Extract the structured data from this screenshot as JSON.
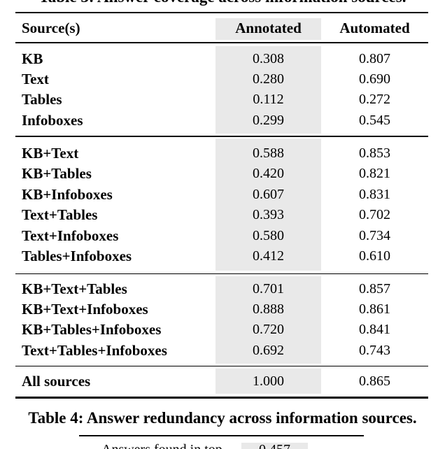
{
  "colors": {
    "background": "#ffffff",
    "text": "#000000",
    "rule": "#000000",
    "annotated_column_shade": "#e9e9e9"
  },
  "top_partial_caption": {
    "text": "Table 3: Answer coverage across information sources."
  },
  "table": {
    "header": {
      "source": "Source(s)",
      "annotated": "Annotated",
      "automated": "Automated"
    },
    "sections": [
      {
        "rows": [
          {
            "label": "KB",
            "annotated": "0.308",
            "automated": "0.807"
          },
          {
            "label": "Text",
            "annotated": "0.280",
            "automated": "0.690"
          },
          {
            "label": "Tables",
            "annotated": "0.112",
            "automated": "0.272"
          },
          {
            "label": "Infoboxes",
            "annotated": "0.299",
            "automated": "0.545"
          }
        ]
      },
      {
        "rows": [
          {
            "label": "KB+Text",
            "annotated": "0.588",
            "automated": "0.853"
          },
          {
            "label": "KB+Tables",
            "annotated": "0.420",
            "automated": "0.821"
          },
          {
            "label": "KB+Infoboxes",
            "annotated": "0.607",
            "automated": "0.831"
          },
          {
            "label": "Text+Tables",
            "annotated": "0.393",
            "automated": "0.702"
          },
          {
            "label": "Text+Infoboxes",
            "annotated": "0.580",
            "automated": "0.734"
          },
          {
            "label": "Tables+Infoboxes",
            "annotated": "0.412",
            "automated": "0.610"
          }
        ]
      },
      {
        "rows": [
          {
            "label": "KB+Text+Tables",
            "annotated": "0.701",
            "automated": "0.857"
          },
          {
            "label": "KB+Text+Infoboxes",
            "annotated": "0.888",
            "automated": "0.861"
          },
          {
            "label": "KB+Tables+Infoboxes",
            "annotated": "0.720",
            "automated": "0.841"
          },
          {
            "label": "Text+Tables+Infoboxes",
            "annotated": "0.692",
            "automated": "0.743"
          }
        ]
      },
      {
        "rows": [
          {
            "label": "All sources",
            "annotated": "1.000",
            "automated": "0.865"
          }
        ]
      }
    ]
  },
  "caption": {
    "text": "Table 4: Answer redundancy across information sources."
  },
  "next_table_partial": {
    "row_label": "Answers found in top",
    "value": "0.457"
  }
}
